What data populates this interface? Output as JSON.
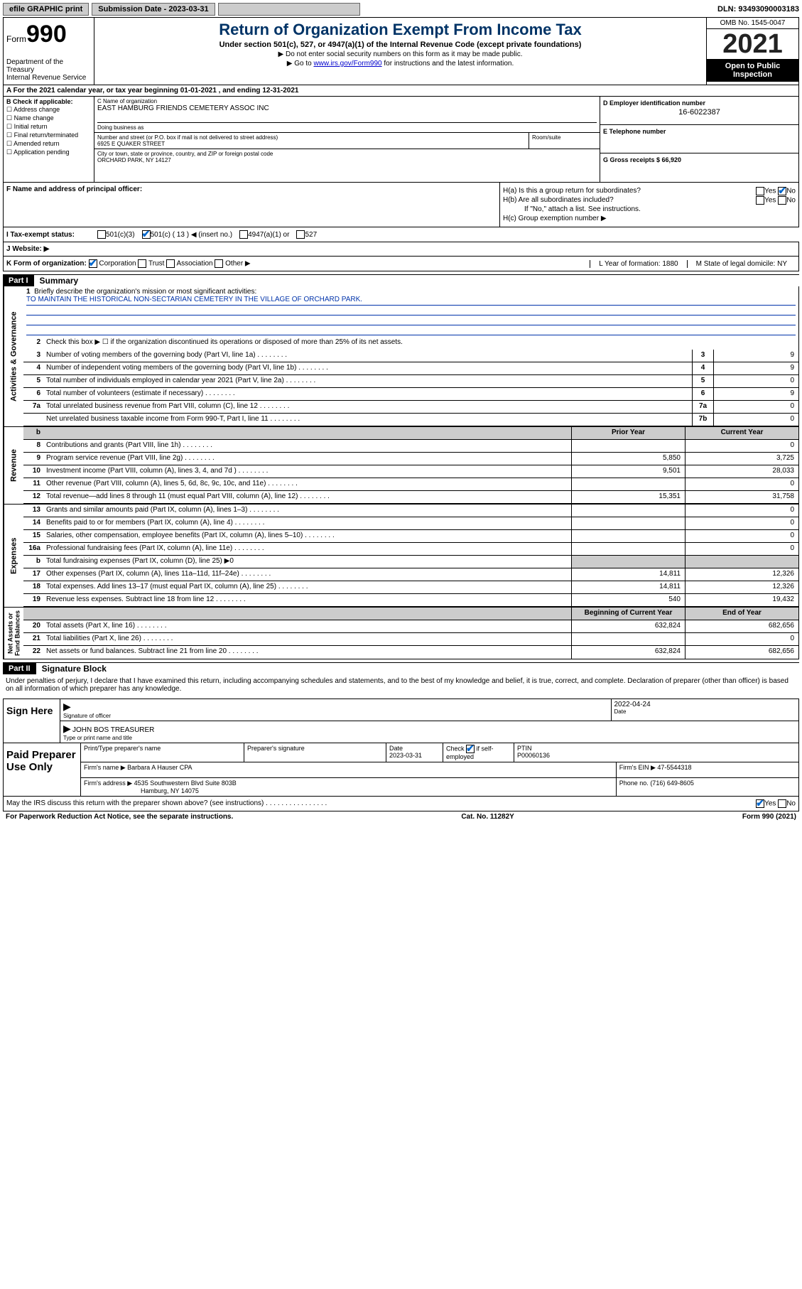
{
  "top_bar": {
    "efile": "efile GRAPHIC print",
    "sub_date_lbl": "Submission Date - 2023-03-31",
    "dln": "DLN: 93493090003183"
  },
  "header": {
    "form_small": "Form",
    "form_big": "990",
    "dept": "Department of the Treasury\nInternal Revenue Service",
    "title": "Return of Organization Exempt From Income Tax",
    "sub": "Under section 501(c), 527, or 4947(a)(1) of the Internal Revenue Code (except private foundations)",
    "line1": "▶ Do not enter social security numbers on this form as it may be made public.",
    "line2_pre": "▶ Go to ",
    "line2_link": "www.irs.gov/Form990",
    "line2_post": " for instructions and the latest information.",
    "omb": "OMB No. 1545-0047",
    "year": "2021",
    "open_pub": "Open to Public Inspection"
  },
  "row_a": "A For the 2021 calendar year, or tax year beginning 01-01-2021    , and ending 12-31-2021",
  "box_b": {
    "lbl": "B Check if applicable:",
    "opts": [
      "☐ Address change",
      "☐ Name change",
      "☐ Initial return",
      "☐ Final return/terminated",
      "☐ Amended return",
      "☐ Application pending"
    ]
  },
  "box_c": {
    "name_lbl": "C Name of organization",
    "name": "EAST HAMBURG FRIENDS CEMETERY ASSOC INC",
    "dba_lbl": "Doing business as",
    "addr_lbl": "Number and street (or P.O. box if mail is not delivered to street address)",
    "addr": "6925 E QUAKER STREET",
    "room_lbl": "Room/suite",
    "city_lbl": "City or town, state or province, country, and ZIP or foreign postal code",
    "city": "ORCHARD PARK, NY  14127"
  },
  "box_d": {
    "lbl": "D Employer identification number",
    "val": "16-6022387",
    "e_lbl": "E Telephone number",
    "g_lbl": "G Gross receipts $ 66,920"
  },
  "f_section": {
    "f_lbl": "F  Name and address of principal officer:",
    "ha": "H(a)  Is this a group return for subordinates?",
    "hb": "H(b)  Are all subordinates included?",
    "hb_note": "If \"No,\" attach a list. See instructions.",
    "hc": "H(c)  Group exemption number ▶",
    "yes": "Yes",
    "no": "No"
  },
  "i_row": {
    "lbl": "I    Tax-exempt status:",
    "o1": "501(c)(3)",
    "o2": "501(c) ( 13 ) ◀ (insert no.)",
    "o3": "4947(a)(1) or",
    "o4": "527"
  },
  "j_row": "J   Website: ▶",
  "k_row": {
    "lbl": "K Form of organization:",
    "o1": "Corporation",
    "o2": "Trust",
    "o3": "Association",
    "o4": "Other ▶",
    "l": "L Year of formation: 1880",
    "m": "M State of legal domicile: NY"
  },
  "part1": {
    "hdr": "Part I",
    "title": "Summary",
    "q1": "Briefly describe the organization's mission or most significant activities:",
    "mission": "TO MAINTAIN THE HISTORICAL NON-SECTARIAN CEMETERY IN THE VILLAGE OF ORCHARD PARK.",
    "q2": "Check this box ▶ ☐  if the organization discontinued its operations or disposed of more than 25% of its net assets.",
    "lines_gov": [
      {
        "n": "3",
        "t": "Number of voting members of the governing body (Part VI, line 1a)",
        "box": "3",
        "v": "9"
      },
      {
        "n": "4",
        "t": "Number of independent voting members of the governing body (Part VI, line 1b)",
        "box": "4",
        "v": "9"
      },
      {
        "n": "5",
        "t": "Total number of individuals employed in calendar year 2021 (Part V, line 2a)",
        "box": "5",
        "v": "0"
      },
      {
        "n": "6",
        "t": "Total number of volunteers (estimate if necessary)",
        "box": "6",
        "v": "9"
      },
      {
        "n": "7a",
        "t": "Total unrelated business revenue from Part VIII, column (C), line 12",
        "box": "7a",
        "v": "0"
      },
      {
        "n": "",
        "t": "Net unrelated business taxable income from Form 990-T, Part I, line 11",
        "box": "7b",
        "v": "0"
      }
    ],
    "prior_hdr": "Prior Year",
    "curr_hdr": "Current Year",
    "rev": [
      {
        "n": "8",
        "t": "Contributions and grants (Part VIII, line 1h)",
        "p": "",
        "c": "0"
      },
      {
        "n": "9",
        "t": "Program service revenue (Part VIII, line 2g)",
        "p": "5,850",
        "c": "3,725"
      },
      {
        "n": "10",
        "t": "Investment income (Part VIII, column (A), lines 3, 4, and 7d )",
        "p": "9,501",
        "c": "28,033"
      },
      {
        "n": "11",
        "t": "Other revenue (Part VIII, column (A), lines 5, 6d, 8c, 9c, 10c, and 11e)",
        "p": "",
        "c": "0"
      },
      {
        "n": "12",
        "t": "Total revenue—add lines 8 through 11 (must equal Part VIII, column (A), line 12)",
        "p": "15,351",
        "c": "31,758"
      }
    ],
    "exp": [
      {
        "n": "13",
        "t": "Grants and similar amounts paid (Part IX, column (A), lines 1–3)",
        "p": "",
        "c": "0"
      },
      {
        "n": "14",
        "t": "Benefits paid to or for members (Part IX, column (A), line 4)",
        "p": "",
        "c": "0"
      },
      {
        "n": "15",
        "t": "Salaries, other compensation, employee benefits (Part IX, column (A), lines 5–10)",
        "p": "",
        "c": "0"
      },
      {
        "n": "16a",
        "t": "Professional fundraising fees (Part IX, column (A), line 11e)",
        "p": "",
        "c": "0"
      },
      {
        "n": "b",
        "t": "Total fundraising expenses (Part IX, column (D), line 25) ▶0",
        "shaded": true
      },
      {
        "n": "17",
        "t": "Other expenses (Part IX, column (A), lines 11a–11d, 11f–24e)",
        "p": "14,811",
        "c": "12,326"
      },
      {
        "n": "18",
        "t": "Total expenses. Add lines 13–17 (must equal Part IX, column (A), line 25)",
        "p": "14,811",
        "c": "12,326"
      },
      {
        "n": "19",
        "t": "Revenue less expenses. Subtract line 18 from line 12",
        "p": "540",
        "c": "19,432"
      }
    ],
    "na_hdr_p": "Beginning of Current Year",
    "na_hdr_c": "End of Year",
    "na": [
      {
        "n": "20",
        "t": "Total assets (Part X, line 16)",
        "p": "632,824",
        "c": "682,656"
      },
      {
        "n": "21",
        "t": "Total liabilities (Part X, line 26)",
        "p": "",
        "c": "0"
      },
      {
        "n": "22",
        "t": "Net assets or fund balances. Subtract line 21 from line 20",
        "p": "632,824",
        "c": "682,656"
      }
    ]
  },
  "vtabs": {
    "gov": "Activities & Governance",
    "rev": "Revenue",
    "exp": "Expenses",
    "na": "Net Assets or\nFund Balances"
  },
  "part2": {
    "hdr": "Part II",
    "title": "Signature Block",
    "decl": "Under penalties of perjury, I declare that I have examined this return, including accompanying schedules and statements, and to the best of my knowledge and belief, it is true, correct, and complete. Declaration of preparer (other than officer) is based on all information of which preparer has any knowledge.",
    "sign_here": "Sign Here",
    "sig_lbl": "Signature of officer",
    "date_lbl": "Date",
    "date_val": "2022-04-24",
    "name": "JOHN BOS TREASURER",
    "name_lbl": "Type or print name and title",
    "paid": "Paid Preparer Use Only",
    "pt_name_lbl": "Print/Type preparer's name",
    "pt_sig_lbl": "Preparer's signature",
    "pt_date_lbl": "Date",
    "pt_date": "2023-03-31",
    "pt_chk": "Check ☑ if self-employed",
    "ptin_lbl": "PTIN",
    "ptin": "P00060136",
    "firm_name_lbl": "Firm's name    ▶",
    "firm_name": "Barbara A Hauser CPA",
    "firm_ein_lbl": "Firm's EIN ▶",
    "firm_ein": "47-5544318",
    "firm_addr_lbl": "Firm's address ▶",
    "firm_addr": "4535 Southwestern Blvd Suite 803B",
    "firm_city": "Hamburg, NY  14075",
    "phone_lbl": "Phone no.",
    "phone": "(716) 649-8605",
    "may_irs": "May the IRS discuss this return with the preparer shown above? (see instructions)",
    "yes": "Yes",
    "no": "No"
  },
  "footer": {
    "l": "For Paperwork Reduction Act Notice, see the separate instructions.",
    "m": "Cat. No. 11282Y",
    "r": "Form 990 (2021)"
  }
}
